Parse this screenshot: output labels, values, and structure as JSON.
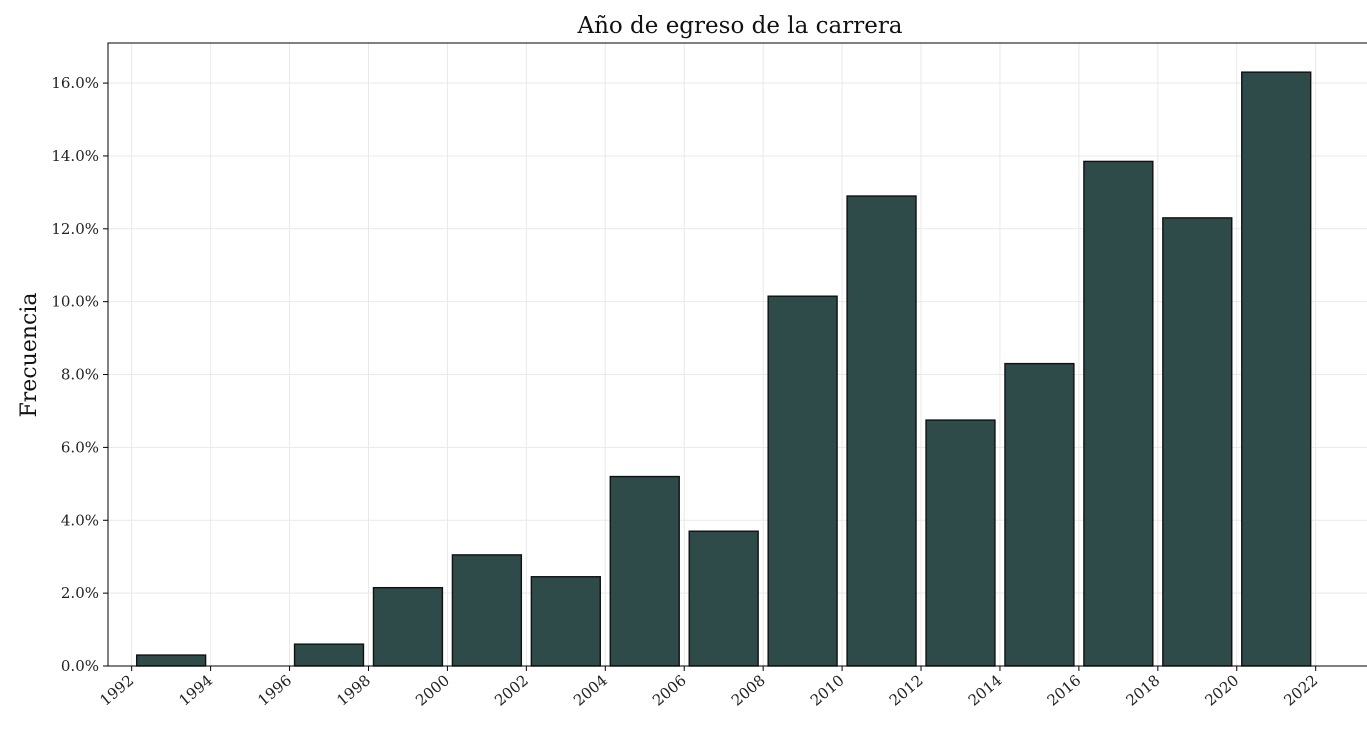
{
  "chart_data": {
    "type": "bar",
    "title": "Año de egreso de la carrera",
    "xlabel": "",
    "ylabel": "Frecuencia",
    "bins": [
      {
        "from": 1992,
        "to": 1994,
        "value": 0.3
      },
      {
        "from": 1994,
        "to": 1996,
        "value": 0.0
      },
      {
        "from": 1996,
        "to": 1998,
        "value": 0.6
      },
      {
        "from": 1998,
        "to": 2000,
        "value": 2.15
      },
      {
        "from": 2000,
        "to": 2002,
        "value": 3.05
      },
      {
        "from": 2002,
        "to": 2004,
        "value": 2.45
      },
      {
        "from": 2004,
        "to": 2006,
        "value": 5.2
      },
      {
        "from": 2006,
        "to": 2008,
        "value": 3.7
      },
      {
        "from": 2008,
        "to": 2010,
        "value": 10.15
      },
      {
        "from": 2010,
        "to": 2012,
        "value": 12.9
      },
      {
        "from": 2012,
        "to": 2014,
        "value": 6.75
      },
      {
        "from": 2014,
        "to": 2016,
        "value": 8.3
      },
      {
        "from": 2016,
        "to": 2018,
        "value": 13.85
      },
      {
        "from": 2018,
        "to": 2020,
        "value": 12.3
      },
      {
        "from": 2020,
        "to": 2022,
        "value": 16.3
      }
    ],
    "x_ticks": [
      "1992",
      "1994",
      "1996",
      "1998",
      "2000",
      "2002",
      "2004",
      "2006",
      "2008",
      "2010",
      "2012",
      "2014",
      "2016",
      "2018",
      "2020",
      "2022"
    ],
    "y_ticks": [
      "0.0%",
      "2.0%",
      "4.0%",
      "6.0%",
      "8.0%",
      "10.0%",
      "12.0%",
      "14.0%",
      "16.0%"
    ],
    "y_tick_values": [
      0,
      2,
      4,
      6,
      8,
      10,
      12,
      14,
      16
    ],
    "xlim": [
      1991.4,
      1993.3
    ],
    "ylim": [
      0,
      17.1
    ],
    "grid": true,
    "bar_color": "#2e4b4a",
    "edge_color": "#111111"
  }
}
